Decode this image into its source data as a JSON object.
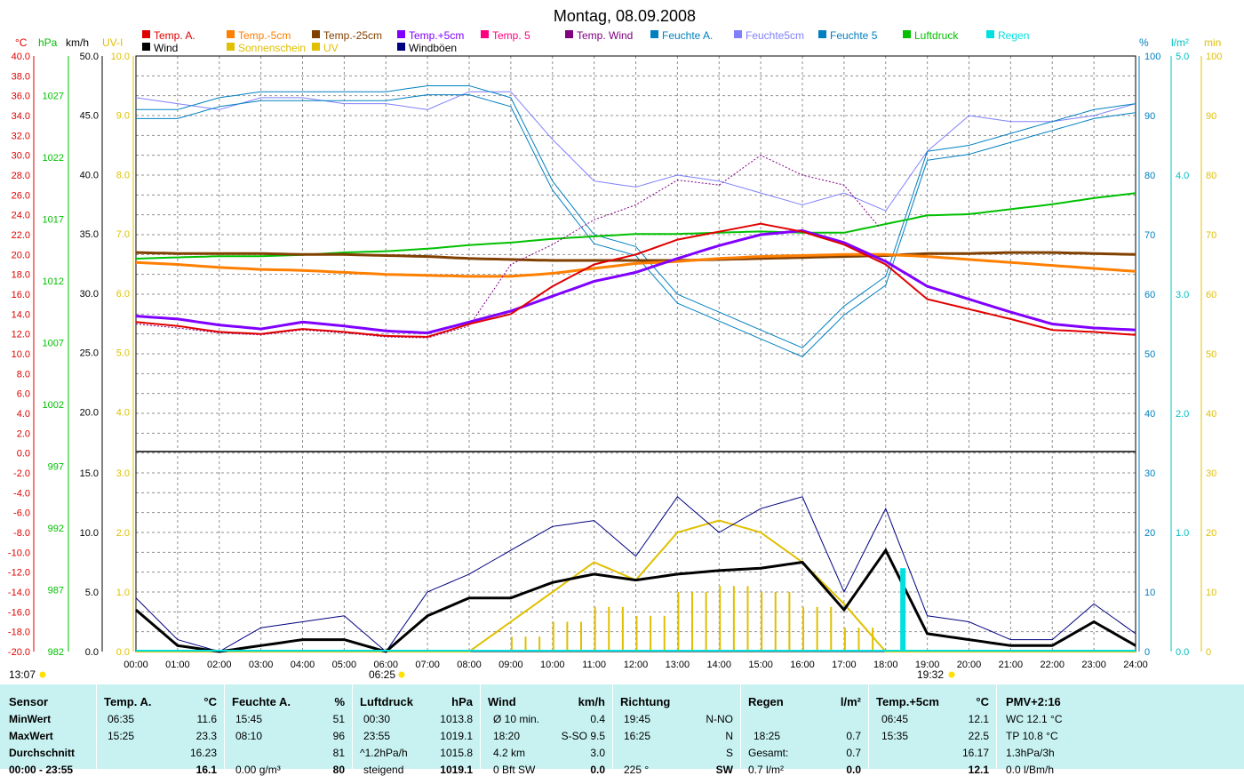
{
  "title": "Montag, 08.09.2008",
  "legend": {
    "row1": [
      {
        "label": "Temp. A.",
        "color": "#e00000"
      },
      {
        "label": "Temp.-5cm",
        "color": "#ff7f00"
      },
      {
        "label": "Temp.-25cm",
        "color": "#804000"
      },
      {
        "label": "Temp.+5cm",
        "color": "#8000ff"
      },
      {
        "label": "Temp. 5",
        "color": "#ff0080"
      },
      {
        "label": "Temp. Wind",
        "color": "#800080"
      },
      {
        "label": "Feuchte A.",
        "color": "#0080c0"
      },
      {
        "label": "Feuchte5cm",
        "color": "#8080ff"
      },
      {
        "label": "Feuchte 5",
        "color": "#0080c0"
      },
      {
        "label": "Luftdruck",
        "color": "#00c000"
      },
      {
        "label": "Regen",
        "color": "#00e0e0"
      }
    ],
    "row2": [
      {
        "label": "Wind",
        "color": "#000000"
      },
      {
        "label": "Sonnenschein",
        "color": "#e0c000"
      },
      {
        "label": "UV",
        "color": "#e0c000"
      },
      {
        "label": "Windböen",
        "color": "#000080"
      }
    ]
  },
  "axis_titles": {
    "celsius": "°C",
    "hpa": "hPa",
    "kmh": "km/h",
    "uvi": "UV-I",
    "percent": "%",
    "rain": "l/m²",
    "min": "min"
  },
  "axes": {
    "celsius": [
      "40.0",
      "38.0",
      "36.0",
      "34.0",
      "32.0",
      "30.0",
      "28.0",
      "26.0",
      "24.0",
      "22.0",
      "20.0",
      "18.0",
      "16.0",
      "14.0",
      "12.0",
      "10.0",
      "8.0",
      "6.0",
      "4.0",
      "2.0",
      "0.0",
      "-2.0",
      "-4.0",
      "-6.0",
      "-8.0",
      "-10.0",
      "-12.0",
      "-14.0",
      "-16.0",
      "-18.0",
      "-20.0"
    ],
    "hpa": [
      "1027",
      "1022",
      "1017",
      "1012",
      "1007",
      "1002",
      "997",
      "992",
      "987",
      "982"
    ],
    "kmh_upper": [
      "50.0",
      "45.0",
      "40.0",
      "35.0",
      "30.0",
      "25.0",
      "20.0"
    ],
    "uvi_upper": [
      "10.0",
      "9.0",
      "8.0",
      "7.0",
      "6.0",
      "5.0",
      "4.0"
    ],
    "kmh_lower": [
      "15.0",
      "10.0",
      "5.0",
      "0.0"
    ],
    "uvi_lower": [
      "3.0",
      "2.0",
      "1.0",
      "0.0"
    ],
    "percent_upper": [
      "100",
      "90",
      "80",
      "70",
      "60",
      "50",
      "40"
    ],
    "rain_upper": [
      "5.0",
      "4.0",
      "3.0",
      "2.0"
    ],
    "percent_lower": [
      "30",
      "20",
      "10",
      "0"
    ],
    "rain_lower": [
      "1.0",
      "0.0"
    ],
    "min": [
      "100",
      "90",
      "80",
      "70",
      "60",
      "50",
      "40",
      "30",
      "20",
      "10",
      "0"
    ],
    "x_ticks": [
      "00:00",
      "01:00",
      "02:00",
      "03:00",
      "04:00",
      "05:00",
      "06:00",
      "07:00",
      "08:00",
      "09:00",
      "10:00",
      "11:00",
      "12:00",
      "13:00",
      "14:00",
      "15:00",
      "16:00",
      "17:00",
      "18:00",
      "19:00",
      "20:00",
      "21:00",
      "22:00",
      "23:00",
      "24:00"
    ]
  },
  "markers": {
    "daylength": "13:07",
    "sunrise": "06:25",
    "sunset": "19:32"
  },
  "colors": {
    "temp_a": "#e00000",
    "temp_minus5": "#ff7f00",
    "temp_minus25": "#804000",
    "temp_plus5": "#8000ff",
    "temp_wind": "#800080",
    "feuchte_a": "#0080c0",
    "feuchte5cm": "#8080ff",
    "luftdruck": "#00c000",
    "wind": "#000000",
    "sun": "#e0c000",
    "boeen": "#000080",
    "regen": "#00e0e0",
    "stats_bg": "#c8f2f2"
  },
  "chart_data": {
    "type": "line",
    "title": "Montag, 08.09.2008",
    "x_unit": "hour",
    "x": [
      0,
      1,
      2,
      3,
      4,
      5,
      6,
      7,
      8,
      9,
      10,
      11,
      12,
      13,
      14,
      15,
      16,
      17,
      18,
      19,
      20,
      21,
      22,
      23,
      24
    ],
    "upper_panel": {
      "series": [
        {
          "name": "Temp. A.",
          "unit": "°C",
          "values": [
            13.2,
            12.8,
            12.2,
            12.0,
            12.5,
            12.2,
            11.8,
            11.7,
            13.0,
            14.0,
            16.8,
            19.0,
            20.0,
            21.5,
            22.3,
            23.1,
            22.3,
            21.0,
            19.0,
            15.5,
            14.5,
            13.5,
            12.4,
            12.2,
            11.9
          ]
        },
        {
          "name": "Temp.+5cm",
          "unit": "°C",
          "values": [
            13.8,
            13.5,
            12.9,
            12.5,
            13.2,
            12.8,
            12.3,
            12.1,
            13.2,
            14.3,
            15.8,
            17.3,
            18.2,
            19.6,
            20.9,
            22.0,
            22.4,
            21.2,
            19.3,
            16.8,
            15.5,
            14.2,
            13.0,
            12.6,
            12.4
          ]
        },
        {
          "name": "Temp.-5cm",
          "unit": "°C",
          "values": [
            19.2,
            19.0,
            18.7,
            18.5,
            18.4,
            18.2,
            18.0,
            17.9,
            17.8,
            17.8,
            18.1,
            18.6,
            19.1,
            19.3,
            19.6,
            19.8,
            19.9,
            20.0,
            20.0,
            19.8,
            19.5,
            19.2,
            18.9,
            18.6,
            18.3
          ]
        },
        {
          "name": "Temp.-25cm",
          "unit": "°C",
          "values": [
            20.2,
            20.1,
            20.1,
            20.1,
            20.0,
            20.0,
            19.9,
            19.8,
            19.6,
            19.5,
            19.4,
            19.4,
            19.4,
            19.4,
            19.5,
            19.6,
            19.7,
            19.8,
            19.9,
            20.1,
            20.1,
            20.2,
            20.2,
            20.1,
            20.0
          ]
        },
        {
          "name": "Temp. Wind",
          "unit": "°C",
          "values": [
            13.0,
            12.6,
            12.1,
            11.9,
            12.4,
            12.1,
            11.7,
            11.6,
            12.8,
            19.0,
            21.0,
            23.5,
            25.0,
            27.5,
            27.0,
            30.0,
            28.0,
            27.0,
            22.0,
            null,
            null,
            null,
            null,
            null,
            null
          ]
        },
        {
          "name": "Feuchte A.",
          "unit": "%",
          "values": [
            91,
            91,
            93,
            94,
            94,
            94,
            94,
            95,
            95,
            93,
            79,
            70,
            68,
            60,
            57,
            54,
            51,
            58,
            63,
            84,
            85,
            87,
            89,
            91,
            92
          ]
        },
        {
          "name": "Feuchte5cm",
          "unit": "%",
          "values": [
            93,
            92,
            91,
            93,
            93,
            92,
            92,
            91,
            94,
            94,
            86,
            79,
            78,
            80,
            79,
            77,
            75,
            77,
            74,
            84,
            90,
            89,
            89,
            90,
            92
          ]
        },
        {
          "name": "Luftdruck",
          "unit": "hPa",
          "values": [
            1013.8,
            1013.9,
            1014.0,
            1014.0,
            1014.1,
            1014.3,
            1014.4,
            1014.6,
            1014.9,
            1015.1,
            1015.4,
            1015.6,
            1015.8,
            1015.8,
            1015.9,
            1016.0,
            1015.9,
            1015.9,
            1016.6,
            1017.3,
            1017.4,
            1017.8,
            1018.2,
            1018.7,
            1019.1
          ]
        }
      ]
    },
    "lower_panel": {
      "series": [
        {
          "name": "Wind",
          "unit": "km/h",
          "values": [
            3.5,
            0.5,
            0.0,
            0.5,
            1.0,
            1.0,
            0.0,
            3.0,
            4.5,
            4.5,
            5.8,
            6.5,
            6.0,
            6.5,
            6.8,
            7.0,
            7.5,
            3.5,
            8.5,
            1.5,
            1.0,
            0.5,
            0.5,
            2.5,
            0.5
          ]
        },
        {
          "name": "Windböen",
          "unit": "km/h",
          "values": [
            4.5,
            1.0,
            0.0,
            2.0,
            2.5,
            3.0,
            0.0,
            5.0,
            6.5,
            8.5,
            10.5,
            11.0,
            8.0,
            13.0,
            10.0,
            12.0,
            13.0,
            5.0,
            12.0,
            3.0,
            2.5,
            1.0,
            1.0,
            4.0,
            1.5
          ]
        },
        {
          "name": "Sonnenschein",
          "unit": "min",
          "values": [
            0,
            0,
            0,
            0,
            0,
            0,
            0,
            0,
            0,
            5,
            10,
            15,
            12,
            20,
            22,
            20,
            15,
            8,
            0,
            0,
            0,
            0,
            0,
            0,
            0
          ]
        },
        {
          "name": "Regen",
          "unit": "l/m²",
          "values": [
            0,
            0,
            0,
            0,
            0,
            0,
            0,
            0,
            0,
            0,
            0,
            0,
            0,
            0,
            0,
            0,
            0,
            0,
            0.7,
            0,
            0,
            0,
            0,
            0,
            0
          ]
        }
      ]
    }
  },
  "stats": {
    "sensor": {
      "title": "Sensor",
      "rows": [
        "MinWert",
        "MaxWert",
        "Durchschnitt",
        "00:00 - 23:55"
      ]
    },
    "temp_a": {
      "title": "Temp. A.",
      "unit": "°C",
      "rows": [
        [
          "06:35",
          "11.6"
        ],
        [
          "15:25",
          "23.3"
        ],
        [
          "",
          "16.23"
        ],
        [
          "",
          "16.1"
        ]
      ]
    },
    "feuchte_a": {
      "title": "Feuchte A.",
      "unit": "%",
      "rows": [
        [
          "15:45",
          "51"
        ],
        [
          "08:10",
          "96"
        ],
        [
          "",
          "81"
        ],
        [
          "0.00 g/m³",
          "80"
        ]
      ]
    },
    "luftdruck": {
      "title": "Luftdruck",
      "unit": "hPa",
      "rows": [
        [
          "00:30",
          "1013.8"
        ],
        [
          "23:55",
          "1019.1"
        ],
        [
          "^1.2hPa/h",
          "1015.8"
        ],
        [
          "steigend",
          "1019.1"
        ]
      ]
    },
    "wind": {
      "title": "Wind",
      "unit": "km/h",
      "rows": [
        [
          "Ø 10 min.",
          "0.4"
        ],
        [
          "18:20",
          "S-SO 9.5"
        ],
        [
          "4.2 km",
          "3.0"
        ],
        [
          "0 Bft SW",
          "0.0"
        ]
      ]
    },
    "richtung": {
      "title": "Richtung",
      "rows": [
        [
          "19:45",
          "N-NO"
        ],
        [
          "16:25",
          "N"
        ],
        [
          "",
          "S"
        ],
        [
          "225 °",
          "SW"
        ]
      ]
    },
    "regen": {
      "title": "Regen",
      "unit": "l/m²",
      "rows": [
        [
          "",
          ""
        ],
        [
          "18:25",
          "0.7"
        ],
        [
          "Gesamt:",
          "0.7"
        ],
        [
          "0.7 l/m²",
          "0.0"
        ]
      ]
    },
    "temp_plus5": {
      "title": "Temp.+5cm",
      "unit": "°C",
      "rows": [
        [
          "06:45",
          "12.1"
        ],
        [
          "15:35",
          "22.5"
        ],
        [
          "",
          "16.17"
        ],
        [
          "",
          "12.1"
        ]
      ]
    },
    "pmv": {
      "title": "PMV+2:16",
      "rows": [
        "WC 12.1 °C",
        "TP 10.8 °C",
        "1.3hPa/3h",
        "0.0 l/Bm/h"
      ]
    }
  }
}
